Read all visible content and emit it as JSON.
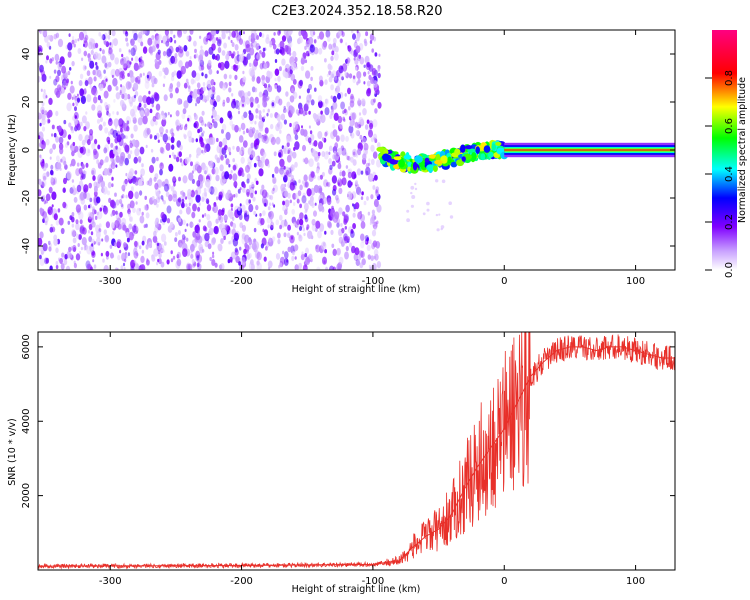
{
  "chart_data": [
    {
      "type": "heatmap",
      "title": "C2E3.2024.352.18.58.R20",
      "xlabel": "Height of straight line (km)",
      "ylabel": "Frequency (Hz)",
      "xlim": [
        -355,
        130
      ],
      "ylim": [
        -50,
        50
      ],
      "xticks": [
        -300,
        -200,
        -100,
        0,
        100
      ],
      "yticks": [
        -40,
        -20,
        0,
        20,
        40
      ],
      "colorbar": {
        "label": "Normalized spectral amplitude",
        "range": [
          0,
          1
        ],
        "ticks": [
          0.0,
          0.2,
          0.4,
          0.6,
          0.8
        ],
        "tick_labels": [
          "0.0",
          "0.2",
          "0.4",
          "0.6",
          "0.8"
        ],
        "colors": [
          "#ffffff",
          "#8000ff",
          "#0000ff",
          "#00ffff",
          "#00ff00",
          "#ffff00",
          "#ff0000",
          "#ff0080"
        ]
      },
      "regions": [
        {
          "x": [
            -355,
            -95
          ],
          "desc": "noise",
          "amplitude": [
            0.0,
            0.15
          ]
        },
        {
          "x": [
            -95,
            0
          ],
          "desc": "signal track",
          "freq_hz": [
            0,
            -10
          ],
          "amplitude": [
            0.3,
            0.8
          ]
        },
        {
          "x": [
            0,
            130
          ],
          "desc": "steady tone",
          "freq_hz": 0,
          "amplitude": 0.9
        }
      ]
    },
    {
      "type": "line",
      "xlabel": "Height of straight line (km)",
      "ylabel": "SNR (10 * v/v)",
      "xlim": [
        -355,
        130
      ],
      "ylim": [
        0,
        6400
      ],
      "xticks": [
        -300,
        -200,
        -100,
        0,
        100
      ],
      "yticks": [
        2000,
        4000,
        6000
      ],
      "series": [
        {
          "color": "#e8302a",
          "x": [
            -355,
            -300,
            -200,
            -100,
            -80,
            -70,
            -60,
            -50,
            -40,
            -30,
            -20,
            -10,
            0,
            10,
            20,
            30,
            40,
            50,
            60,
            70,
            80,
            90,
            100,
            110,
            120,
            130
          ],
          "y": [
            100,
            110,
            120,
            150,
            250,
            600,
            900,
            1100,
            1500,
            2200,
            2800,
            3300,
            3800,
            4500,
            5200,
            5600,
            5900,
            6000,
            6000,
            5900,
            6000,
            6000,
            5900,
            5800,
            5700,
            5700
          ]
        }
      ]
    }
  ]
}
